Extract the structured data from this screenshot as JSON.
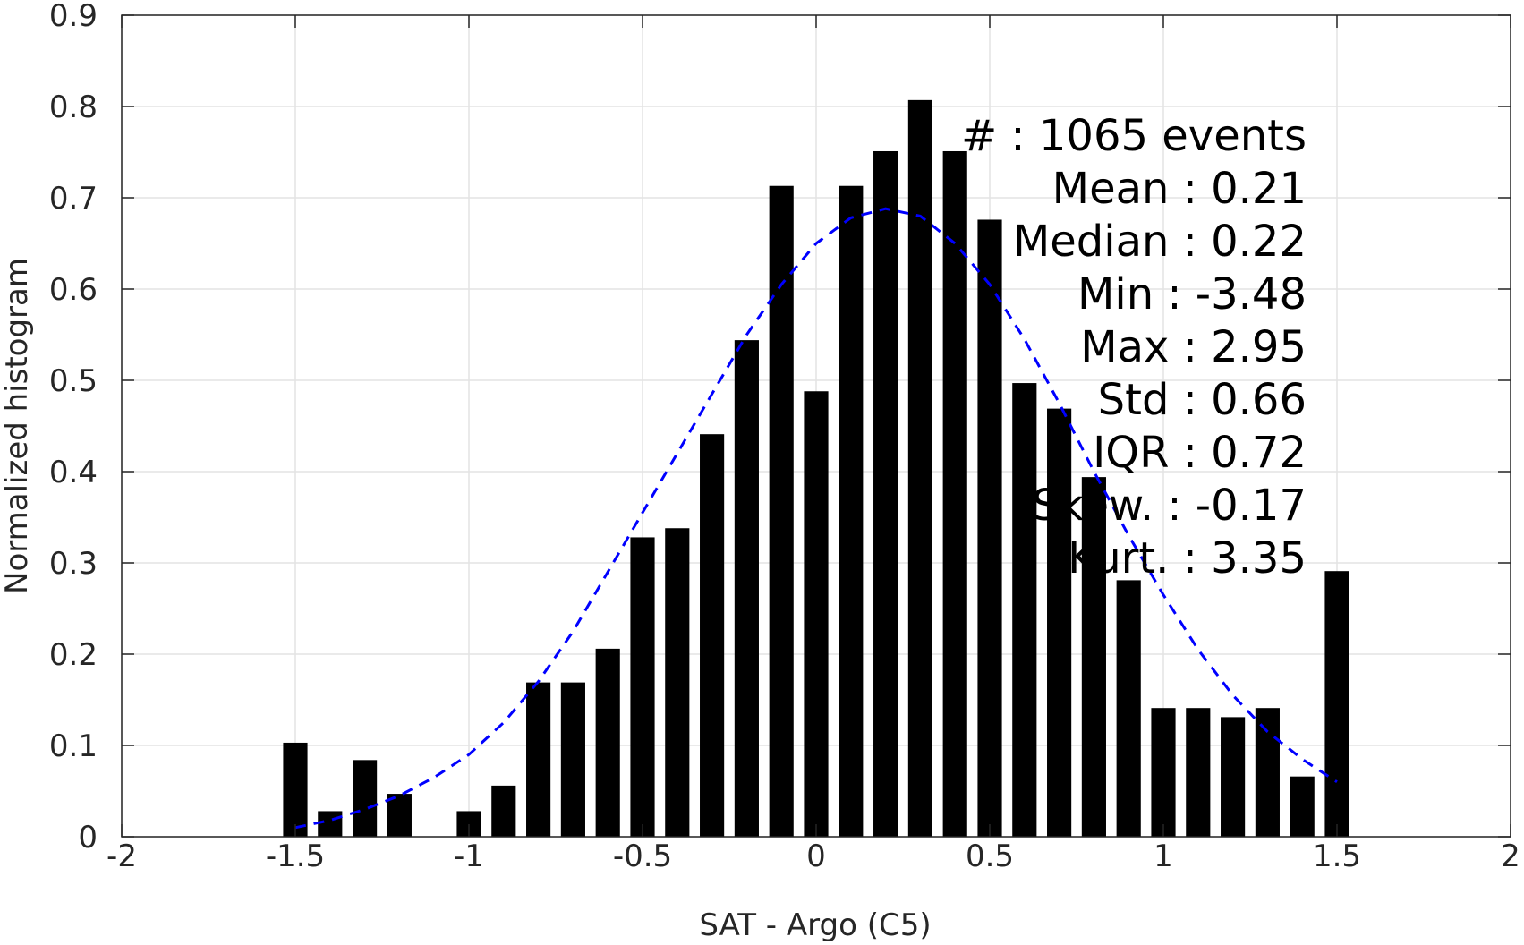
{
  "chart_data": {
    "type": "bar",
    "title": "",
    "xlabel": "SAT - Argo (C5)",
    "ylabel": "Normalized histogram",
    "xlim": [
      -2,
      2
    ],
    "ylim": [
      0,
      0.9
    ],
    "grid": true,
    "x_ticks": [
      "-2",
      "-1.5",
      "-1",
      "-0.5",
      "0",
      "0.5",
      "1",
      "1.5",
      "2"
    ],
    "y_ticks": [
      "0",
      "0.1",
      "0.2",
      "0.3",
      "0.4",
      "0.5",
      "0.6",
      "0.7",
      "0.8",
      "0.9"
    ],
    "bar_width": 0.07,
    "series": [
      {
        "x": [
          -1.5,
          -1.4,
          -1.3,
          -1.2,
          -1.0,
          -0.9,
          -0.8,
          -0.7,
          -0.6,
          -0.5,
          -0.4,
          -0.3,
          -0.2,
          -0.1,
          0.0,
          0.1,
          0.2,
          0.3,
          0.4,
          0.5,
          0.6,
          0.7,
          0.8,
          0.9,
          1.0,
          1.1,
          1.2,
          1.3,
          1.4,
          1.5
        ],
        "values": [
          0.103,
          0.028,
          0.084,
          0.047,
          0.028,
          0.056,
          0.169,
          0.169,
          0.206,
          0.328,
          0.338,
          0.441,
          0.544,
          0.713,
          0.488,
          0.713,
          0.751,
          0.807,
          0.751,
          0.676,
          0.497,
          0.469,
          0.394,
          0.281,
          0.141,
          0.141,
          0.131,
          0.141,
          0.066,
          0.291
        ],
        "color": "#000000"
      }
    ],
    "fit_curve": {
      "style": "dashed",
      "color": "#0000ff",
      "x": [
        -1.5,
        -1.4,
        -1.3,
        -1.2,
        -1.1,
        -1.0,
        -0.9,
        -0.8,
        -0.7,
        -0.6,
        -0.5,
        -0.4,
        -0.3,
        -0.2,
        -0.1,
        0.0,
        0.1,
        0.2,
        0.3,
        0.4,
        0.5,
        0.6,
        0.7,
        0.8,
        0.9,
        1.0,
        1.1,
        1.2,
        1.3,
        1.4,
        1.5
      ],
      "y": [
        0.01,
        0.018,
        0.03,
        0.045,
        0.065,
        0.09,
        0.125,
        0.17,
        0.225,
        0.29,
        0.355,
        0.42,
        0.485,
        0.55,
        0.605,
        0.65,
        0.678,
        0.688,
        0.68,
        0.65,
        0.605,
        0.545,
        0.475,
        0.4,
        0.33,
        0.265,
        0.205,
        0.155,
        0.115,
        0.085,
        0.06
      ]
    },
    "annotations": [
      "#  : 1065 events",
      "Mean : 0.21",
      "Median : 0.22",
      "Min : -3.48",
      "Max : 2.95",
      "Std : 0.66",
      "IQR : 0.72",
      "Skew. : -0.17",
      "Kurt. : 3.35"
    ]
  }
}
